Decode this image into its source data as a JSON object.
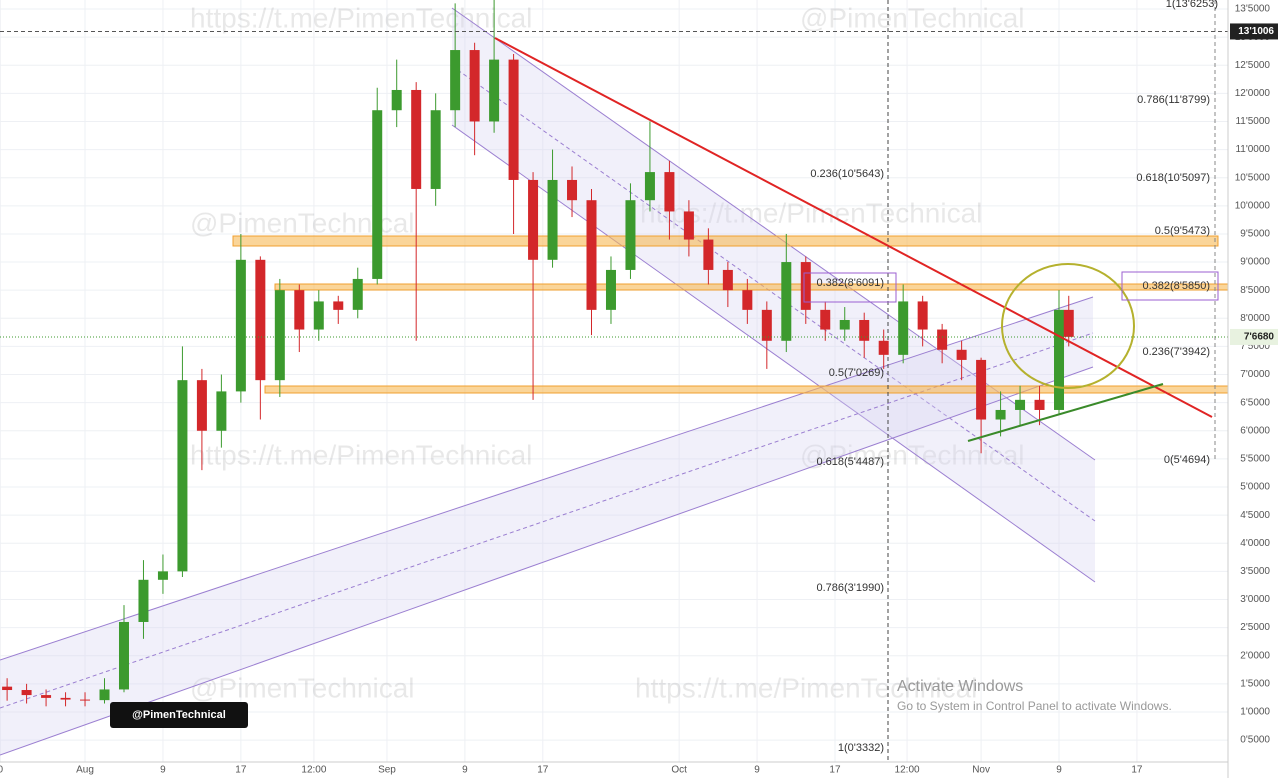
{
  "chart_data": {
    "type": "candlestick",
    "x": [
      -8,
      -6,
      -4,
      -2,
      0,
      2,
      4,
      6,
      8,
      10,
      12,
      14,
      16,
      18,
      20,
      22,
      24,
      26,
      28,
      30,
      32,
      34,
      36,
      38,
      40,
      42,
      44,
      46,
      48,
      50,
      52,
      54,
      56,
      58,
      60,
      62,
      64,
      66,
      68,
      70,
      72,
      74,
      76,
      78,
      80,
      82,
      84,
      86,
      88,
      90,
      92,
      94,
      96,
      98,
      100,
      101
    ],
    "open": [
      1.45,
      1.39,
      1.3,
      1.25,
      1.22,
      1.21,
      1.4,
      2.6,
      3.35,
      3.5,
      6.9,
      6.0,
      6.7,
      9.04,
      6.9,
      8.5,
      7.8,
      8.3,
      8.15,
      8.7,
      11.7,
      12.06,
      10.3,
      11.7,
      12.77,
      11.5,
      12.6,
      10.46,
      9.04,
      10.46,
      10.1,
      8.15,
      8.86,
      10.1,
      10.6,
      9.9,
      9.4,
      8.86,
      8.5,
      8.15,
      7.6,
      9.0,
      8.15,
      7.8,
      7.97,
      7.6,
      7.35,
      8.3,
      7.8,
      7.44,
      7.26,
      6.2,
      6.37,
      6.55,
      6.37,
      8.15
    ],
    "high": [
      1.6,
      1.5,
      1.4,
      1.35,
      1.35,
      1.6,
      2.9,
      3.7,
      3.8,
      7.5,
      7.1,
      7.0,
      9.5,
      9.1,
      8.7,
      8.6,
      8.5,
      8.4,
      8.9,
      12.1,
      12.6,
      12.2,
      12.0,
      13.6,
      12.9,
      13.66,
      12.7,
      10.6,
      11.0,
      10.7,
      10.3,
      9.1,
      10.4,
      11.5,
      10.8,
      10.1,
      9.6,
      9.0,
      8.7,
      8.3,
      9.5,
      9.1,
      8.3,
      8.2,
      8.1,
      7.8,
      8.6,
      8.4,
      7.9,
      7.6,
      7.3,
      6.7,
      6.8,
      6.8,
      8.5,
      8.4
    ],
    "low": [
      1.2,
      1.15,
      1.1,
      1.1,
      1.1,
      1.15,
      1.35,
      2.3,
      3.1,
      3.4,
      5.3,
      5.7,
      6.5,
      6.2,
      6.6,
      7.4,
      7.6,
      7.9,
      8.0,
      8.6,
      11.4,
      7.6,
      10.0,
      11.4,
      10.9,
      11.3,
      9.5,
      6.55,
      8.9,
      9.8,
      7.7,
      7.9,
      8.7,
      9.9,
      9.4,
      9.1,
      8.6,
      8.2,
      7.9,
      7.1,
      7.4,
      7.9,
      7.6,
      7.6,
      7.3,
      7.1,
      7.2,
      7.5,
      7.2,
      6.9,
      5.6,
      5.9,
      6.1,
      6.1,
      6.3,
      7.5
    ],
    "close": [
      1.39,
      1.3,
      1.25,
      1.22,
      1.21,
      1.4,
      2.6,
      3.35,
      3.5,
      6.9,
      6.0,
      6.7,
      9.04,
      6.9,
      8.5,
      7.8,
      8.3,
      8.15,
      8.7,
      11.7,
      12.06,
      10.3,
      11.7,
      12.77,
      11.5,
      12.6,
      10.46,
      9.04,
      10.46,
      10.1,
      8.15,
      8.86,
      10.1,
      10.6,
      9.9,
      9.4,
      8.86,
      8.5,
      8.15,
      7.6,
      9.0,
      8.15,
      7.8,
      7.97,
      7.6,
      7.35,
      8.3,
      7.8,
      7.44,
      7.26,
      6.2,
      6.37,
      6.55,
      6.37,
      8.15,
      7.67
    ],
    "up_color": "#3c9a2e",
    "down_color": "#d3272a",
    "xlim": [
      -8.73,
      117.35
    ],
    "xticks": [
      {
        "value": -8.7,
        "label": "0"
      },
      {
        "value": 0,
        "label": "Aug"
      },
      {
        "value": 8,
        "label": "9"
      },
      {
        "value": 16,
        "label": "17"
      },
      {
        "value": 23.5,
        "label": "12:00"
      },
      {
        "value": 31,
        "label": "Sep"
      },
      {
        "value": 39,
        "label": "9"
      },
      {
        "value": 47,
        "label": "17"
      },
      {
        "value": 61,
        "label": "Oct"
      },
      {
        "value": 69,
        "label": "9"
      },
      {
        "value": 77,
        "label": "17"
      },
      {
        "value": 84.4,
        "label": "12:00"
      },
      {
        "value": 92,
        "label": "Nov"
      },
      {
        "value": 100,
        "label": "9"
      },
      {
        "value": 108,
        "label": "17"
      }
    ],
    "ylim": [
      0.11,
      13.66
    ],
    "yticks": [
      {
        "value": 0.5,
        "label": "0'5000"
      },
      {
        "value": 1,
        "label": "1'0000"
      },
      {
        "value": 1.5,
        "label": "1'5000"
      },
      {
        "value": 2,
        "label": "2'0000"
      },
      {
        "value": 2.5,
        "label": "2'5000"
      },
      {
        "value": 3,
        "label": "3'0000"
      },
      {
        "value": 3.5,
        "label": "3'5000"
      },
      {
        "value": 4,
        "label": "4'0000"
      },
      {
        "value": 4.5,
        "label": "4'5000"
      },
      {
        "value": 5,
        "label": "5'0000"
      },
      {
        "value": 5.5,
        "label": "5'5000"
      },
      {
        "value": 6,
        "label": "6'0000"
      },
      {
        "value": 6.5,
        "label": "6'5000"
      },
      {
        "value": 7,
        "label": "7'0000"
      },
      {
        "value": 7.5,
        "label": "7'5000"
      },
      {
        "value": 8,
        "label": "8'0000"
      },
      {
        "value": 8.5,
        "label": "8'5000"
      },
      {
        "value": 9,
        "label": "9'0000"
      },
      {
        "value": 9.5,
        "label": "9'5000"
      },
      {
        "value": 10,
        "label": "10'0000"
      },
      {
        "value": 10.5,
        "label": "10'5000"
      },
      {
        "value": 11,
        "label": "11'0000"
      },
      {
        "value": 11.5,
        "label": "11'5000"
      },
      {
        "value": 12,
        "label": "12'0000"
      },
      {
        "value": 12.5,
        "label": "12'5000"
      },
      {
        "value": 13,
        "label": "13'0000"
      },
      {
        "value": 13.5,
        "label": "13'5000"
      }
    ],
    "grid": true,
    "price_tags": [
      {
        "value": 13.1006,
        "label": "13'1006",
        "color": "#222222"
      },
      {
        "value": 7.668,
        "label": "7'6680",
        "color": "#e8f2e0"
      }
    ],
    "annotations": [
      "1(13'6253)",
      "0.786(11'8799)",
      "0.618(10'5097)",
      "0.5(9'5473)",
      "0.382(8'5850)",
      "0.236(7'3942)",
      "0(5'4694)",
      "0.236(10'5643)",
      "0.382(8'6091)",
      "0.5(7'0269)",
      "0.618(5'4487)",
      "0.786(3'1990)",
      "1(0'3332)"
    ],
    "watermark_url": "https://t.me/PimenTechnical",
    "watermark_handle": "@PimenTechnical",
    "badge": "@PimenTechnical",
    "activation_title": "Activate Windows",
    "activation_text": "Go to System in Control Panel to activate Windows."
  }
}
